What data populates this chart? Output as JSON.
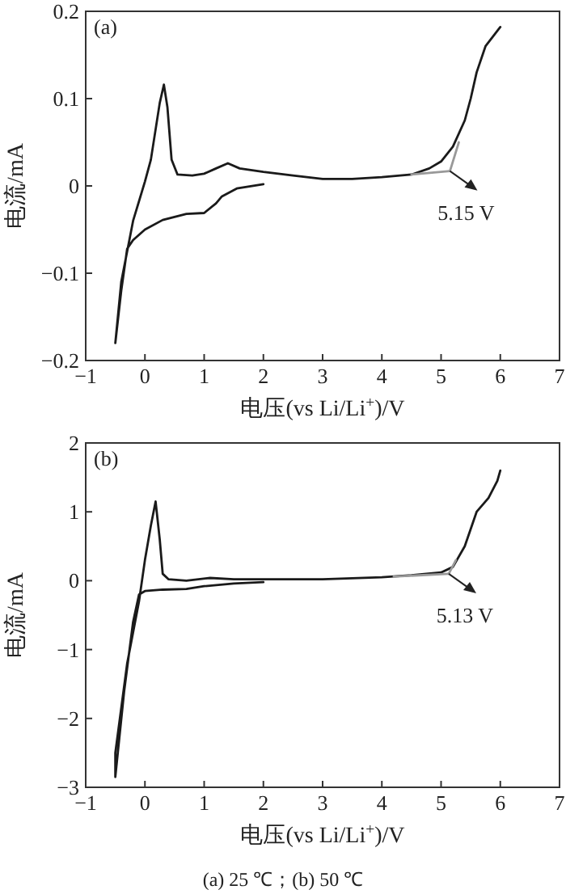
{
  "chart_data": [
    {
      "type": "line",
      "title": "(a)",
      "xlabel": "电压(vs Li/Li$^{+}$)/V",
      "ylabel": "电流/mA",
      "xlim": [
        -1,
        7
      ],
      "ylim": [
        -0.2,
        0.2
      ],
      "xticks": [
        -1,
        0,
        1,
        2,
        3,
        4,
        5,
        6,
        7
      ],
      "yticks": [
        -0.2,
        -0.1,
        0,
        0.1,
        0.2
      ],
      "line_style": "solid",
      "grid": false,
      "series": [
        {
          "color": "#1a1a1a",
          "x": [
            2.0,
            1.55,
            1.3,
            1.2,
            1.0,
            0.7,
            0.3,
            0.0,
            -0.2,
            -0.3,
            -0.4,
            -0.5,
            -0.4,
            -0.2,
            0.0,
            0.1,
            0.25,
            0.32,
            0.38,
            0.45,
            0.55,
            0.8,
            1.0,
            1.2,
            1.4,
            1.6,
            2.0,
            2.5,
            3.0,
            3.5,
            4.0,
            4.5,
            4.8,
            5.0,
            5.2,
            5.4,
            5.5,
            5.6,
            5.75,
            6.0
          ],
          "values": [
            0.002,
            -0.003,
            -0.012,
            -0.02,
            -0.031,
            -0.032,
            -0.039,
            -0.05,
            -0.062,
            -0.072,
            -0.12,
            -0.18,
            -0.11,
            -0.04,
            0.005,
            0.03,
            0.095,
            0.116,
            0.09,
            0.03,
            0.013,
            0.012,
            0.014,
            0.02,
            0.026,
            0.02,
            0.016,
            0.012,
            0.008,
            0.008,
            0.01,
            0.013,
            0.02,
            0.028,
            0.045,
            0.075,
            0.1,
            0.13,
            0.16,
            0.182
          ]
        },
        {
          "color": "#999999",
          "x": [
            4.5,
            5.15
          ],
          "values": [
            0.013,
            0.017
          ]
        },
        {
          "color": "#999999",
          "x": [
            5.15,
            5.3
          ],
          "values": [
            0.017,
            0.05
          ]
        }
      ],
      "annotations": [
        {
          "text": "5.15 V",
          "x": 5.15,
          "y": 0.017
        }
      ]
    },
    {
      "type": "line",
      "title": "(b)",
      "xlabel": "电压(vs Li/Li$^{+}$)/V",
      "ylabel": "电流/mA",
      "xlim": [
        -1,
        7
      ],
      "ylim": [
        -3,
        2
      ],
      "xticks": [
        -1,
        0,
        1,
        2,
        3,
        4,
        5,
        6,
        7
      ],
      "yticks": [
        -3,
        -2,
        -1,
        0,
        1,
        2
      ],
      "line_style": "solid",
      "grid": false,
      "series": [
        {
          "color": "#1a1a1a",
          "x": [
            2.0,
            1.5,
            1.0,
            0.7,
            0.3,
            0.0,
            -0.1,
            -0.2,
            -0.35,
            -0.5,
            -0.5,
            -0.3,
            -0.1,
            0.0,
            0.1,
            0.18,
            0.25,
            0.3,
            0.4,
            0.7,
            1.1,
            1.5,
            2.0,
            3.0,
            4.0,
            4.5,
            5.0,
            5.2,
            5.4,
            5.6,
            5.8,
            5.95,
            6.0
          ],
          "values": [
            -0.02,
            -0.04,
            -0.08,
            -0.12,
            -0.13,
            -0.15,
            -0.2,
            -0.6,
            -1.6,
            -2.85,
            -2.5,
            -1.2,
            -0.3,
            0.3,
            0.8,
            1.15,
            0.6,
            0.1,
            0.02,
            0.0,
            0.04,
            0.02,
            0.02,
            0.02,
            0.05,
            0.08,
            0.12,
            0.2,
            0.5,
            1.0,
            1.2,
            1.45,
            1.6
          ]
        },
        {
          "color": "#999999",
          "x": [
            4.2,
            5.13
          ],
          "values": [
            0.06,
            0.1
          ]
        },
        {
          "color": "#999999",
          "x": [
            5.13,
            5.25
          ],
          "values": [
            0.1,
            0.3
          ]
        }
      ],
      "annotations": [
        {
          "text": "5.13 V",
          "x": 5.13,
          "y": 0.1
        },
        "(a) 25 ℃；(b) 50 ℃"
      ]
    }
  ]
}
